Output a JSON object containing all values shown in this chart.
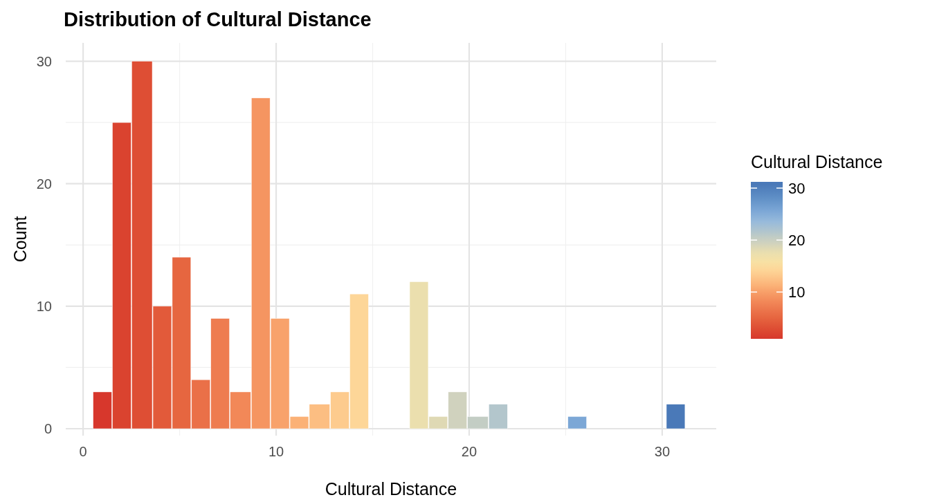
{
  "chart_data": {
    "type": "histogram",
    "title": "Distribution of Cultural Distance",
    "xlabel": "Cultural Distance",
    "ylabel": "Count",
    "clabel": "Cultural Distance",
    "bins": [
      0.5,
      1.5,
      2.5,
      3.6,
      4.6,
      5.6,
      6.6,
      7.6,
      8.7,
      9.7,
      10.7,
      11.7,
      12.8,
      13.8,
      14.8,
      16.9,
      17.9,
      18.9,
      19.9,
      21.0,
      22.0,
      25.1,
      26.1,
      30.2,
      31.2
    ],
    "values": [
      3,
      25,
      30,
      10,
      14,
      4,
      9,
      3,
      27,
      9,
      1,
      2,
      3,
      11,
      0,
      12,
      1,
      3,
      1,
      2,
      0,
      1,
      0,
      2
    ],
    "colors": [
      "#d7372c",
      "#da432f",
      "#de4e34",
      "#e25a3a",
      "#e66640",
      "#ea7048",
      "#ee7c50",
      "#f28858",
      "#f59561",
      "#f8a26b",
      "#fbb176",
      "#fcbe82",
      "#fdcb8e",
      "#fdd698",
      "#f7e1a4",
      "#ebdfae",
      "#dfd9b4",
      "#d0d2be",
      "#c3cdc4",
      "#b3c6cc",
      "#97badb",
      "#7ca7d6",
      "#5f8fc6",
      "#4a79b8"
    ],
    "xlim": [
      -0.9,
      32.8
    ],
    "xticks": [
      0,
      10,
      20,
      30
    ],
    "ylim": [
      0,
      31.5
    ],
    "yticks": [
      0,
      10,
      20,
      30
    ],
    "grid": true,
    "clim": [
      1,
      31.2
    ],
    "cticks": [
      10,
      20,
      30
    ]
  }
}
